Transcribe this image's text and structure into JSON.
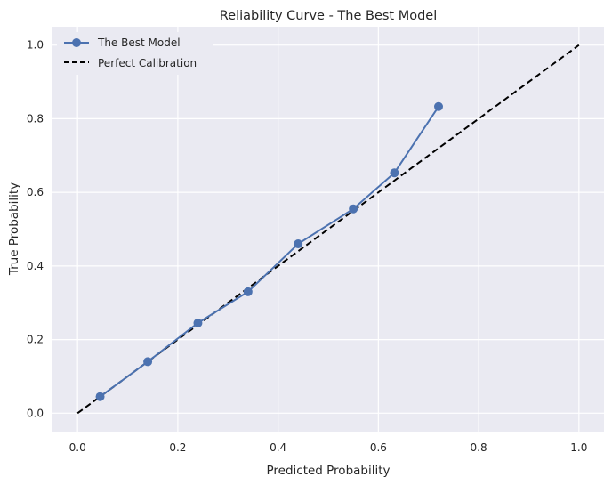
{
  "chart_data": {
    "type": "line",
    "title": "Reliability Curve - The Best Model",
    "xlabel": "Predicted Probability",
    "ylabel": "True Probability",
    "xlim": [
      -0.05,
      1.05
    ],
    "ylim": [
      -0.05,
      1.05
    ],
    "xticks": [
      0.0,
      0.2,
      0.4,
      0.6,
      0.8,
      1.0
    ],
    "yticks": [
      0.0,
      0.2,
      0.4,
      0.6,
      0.8,
      1.0
    ],
    "xtick_labels": [
      "0.0",
      "0.2",
      "0.4",
      "0.6",
      "0.8",
      "1.0"
    ],
    "ytick_labels": [
      "0.0",
      "0.2",
      "0.4",
      "0.6",
      "0.8",
      "1.0"
    ],
    "grid": true,
    "legend_position": "top-left",
    "background_color": "#eaeaf2",
    "series": [
      {
        "name": "The Best Model",
        "style": "solid-with-markers",
        "color": "#4c72b0",
        "x": [
          0.045,
          0.14,
          0.24,
          0.34,
          0.44,
          0.55,
          0.632,
          0.72
        ],
        "y": [
          0.045,
          0.14,
          0.245,
          0.33,
          0.46,
          0.555,
          0.653,
          0.833
        ]
      },
      {
        "name": "Perfect Calibration",
        "style": "dashed",
        "color": "#000000",
        "x": [
          0.0,
          1.0
        ],
        "y": [
          0.0,
          1.0
        ]
      }
    ]
  }
}
